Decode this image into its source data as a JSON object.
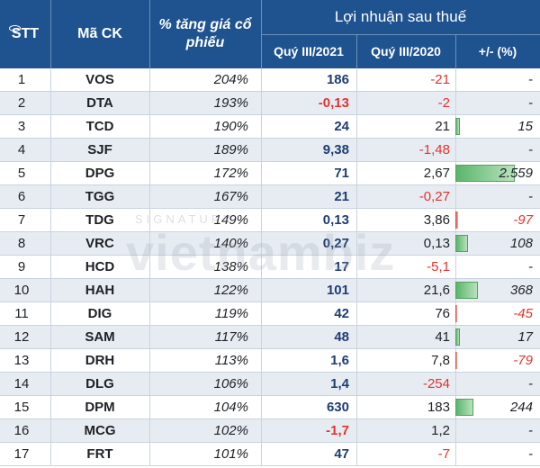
{
  "header": {
    "stt": "STT",
    "ma_ck": "Mã CK",
    "pct": "% tăng giá cổ phiếu",
    "group": "Lợi nhuận sau thuế",
    "q3_2021": "Quý III/2021",
    "q3_2020": "Quý III/2020",
    "change": "+/- (%)"
  },
  "watermark": {
    "small": "SIGNATURY",
    "big": "vietnambiz"
  },
  "colors": {
    "header_bg": "#1f5390",
    "negative": "#e0342f",
    "q3_2021_text": "#1f3d73",
    "bar_positive": "#5ab56a",
    "bar_negative": "#e0342f"
  },
  "rows": [
    {
      "stt": "1",
      "ma": "VOS",
      "pct": "204%",
      "q3": "186",
      "q3_neg": false,
      "q3b": "-21",
      "q3b_neg": true,
      "chg": "-",
      "chg_neg": false,
      "chg_val": null
    },
    {
      "stt": "2",
      "ma": "DTA",
      "pct": "193%",
      "q3": "-0,13",
      "q3_neg": true,
      "q3b": "-2",
      "q3b_neg": true,
      "chg": "-",
      "chg_neg": false,
      "chg_val": null
    },
    {
      "stt": "3",
      "ma": "TCD",
      "pct": "190%",
      "q3": "24",
      "q3_neg": false,
      "q3b": "21",
      "q3b_neg": false,
      "chg": "15",
      "chg_neg": false,
      "chg_val": 15
    },
    {
      "stt": "4",
      "ma": "SJF",
      "pct": "189%",
      "q3": "9,38",
      "q3_neg": false,
      "q3b": "-1,48",
      "q3b_neg": true,
      "chg": "-",
      "chg_neg": false,
      "chg_val": null
    },
    {
      "stt": "5",
      "ma": "DPG",
      "pct": "172%",
      "q3": "71",
      "q3_neg": false,
      "q3b": "2,67",
      "q3b_neg": false,
      "chg": "2.559",
      "chg_neg": false,
      "chg_val": 2559
    },
    {
      "stt": "6",
      "ma": "TGG",
      "pct": "167%",
      "q3": "21",
      "q3_neg": false,
      "q3b": "-0,27",
      "q3b_neg": true,
      "chg": "-",
      "chg_neg": false,
      "chg_val": null
    },
    {
      "stt": "7",
      "ma": "TDG",
      "pct": "149%",
      "q3": "0,13",
      "q3_neg": false,
      "q3b": "3,86",
      "q3b_neg": false,
      "chg": "-97",
      "chg_neg": true,
      "chg_val": -97
    },
    {
      "stt": "8",
      "ma": "VRC",
      "pct": "140%",
      "q3": "0,27",
      "q3_neg": false,
      "q3b": "0,13",
      "q3b_neg": false,
      "chg": "108",
      "chg_neg": false,
      "chg_val": 108
    },
    {
      "stt": "9",
      "ma": "HCD",
      "pct": "138%",
      "q3": "17",
      "q3_neg": false,
      "q3b": "-5,1",
      "q3b_neg": true,
      "chg": "-",
      "chg_neg": false,
      "chg_val": null
    },
    {
      "stt": "10",
      "ma": "HAH",
      "pct": "122%",
      "q3": "101",
      "q3_neg": false,
      "q3b": "21,6",
      "q3b_neg": false,
      "chg": "368",
      "chg_neg": false,
      "chg_val": 368
    },
    {
      "stt": "11",
      "ma": "DIG",
      "pct": "119%",
      "q3": "42",
      "q3_neg": false,
      "q3b": "76",
      "q3b_neg": false,
      "chg": "-45",
      "chg_neg": true,
      "chg_val": -45
    },
    {
      "stt": "12",
      "ma": "SAM",
      "pct": "117%",
      "q3": "48",
      "q3_neg": false,
      "q3b": "41",
      "q3b_neg": false,
      "chg": "17",
      "chg_neg": false,
      "chg_val": 17
    },
    {
      "stt": "13",
      "ma": "DRH",
      "pct": "113%",
      "q3": "1,6",
      "q3_neg": false,
      "q3b": "7,8",
      "q3b_neg": false,
      "chg": "-79",
      "chg_neg": true,
      "chg_val": -79
    },
    {
      "stt": "14",
      "ma": "DLG",
      "pct": "106%",
      "q3": "1,4",
      "q3_neg": false,
      "q3b": "-254",
      "q3b_neg": true,
      "chg": "-",
      "chg_neg": false,
      "chg_val": null
    },
    {
      "stt": "15",
      "ma": "DPM",
      "pct": "104%",
      "q3": "630",
      "q3_neg": false,
      "q3b": "183",
      "q3b_neg": false,
      "chg": "244",
      "chg_neg": false,
      "chg_val": 244
    },
    {
      "stt": "16",
      "ma": "MCG",
      "pct": "102%",
      "q3": "-1,7",
      "q3_neg": true,
      "q3b": "1,2",
      "q3b_neg": false,
      "chg": "-",
      "chg_neg": false,
      "chg_val": null
    },
    {
      "stt": "17",
      "ma": "FRT",
      "pct": "101%",
      "q3": "47",
      "q3_neg": false,
      "q3b": "-7",
      "q3b_neg": true,
      "chg": "-",
      "chg_neg": false,
      "chg_val": null
    }
  ]
}
